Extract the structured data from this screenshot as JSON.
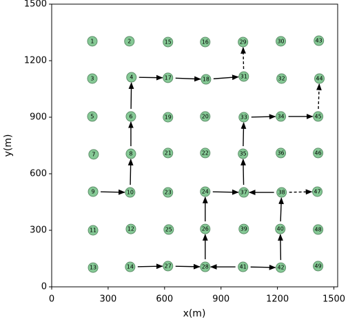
{
  "chart_data": {
    "type": "scatter",
    "xlabel": "x(m)",
    "ylabel": "y(m)",
    "xlim": [
      0,
      1520
    ],
    "ylim": [
      0,
      1500
    ],
    "xticks": [
      0,
      300,
      600,
      900,
      1200,
      1500
    ],
    "yticks": [
      0,
      300,
      600,
      900,
      1200,
      1500
    ],
    "color": "#85c995",
    "edge_color": "#5e8f6a",
    "arrow_color": "#000000",
    "point_labels": [
      "1",
      "2",
      "3",
      "4",
      "5",
      "6",
      "7",
      "8",
      "9",
      "10",
      "11",
      "12",
      "13",
      "14",
      "15",
      "16",
      "17",
      "18",
      "19",
      "20",
      "21",
      "22",
      "23",
      "24",
      "25",
      "26",
      "27",
      "28",
      "29",
      "30",
      "31",
      "32",
      "33",
      "34",
      "35",
      "36",
      "37",
      "38",
      "39",
      "40",
      "41",
      "42",
      "43",
      "44",
      "45",
      "46",
      "47",
      "48",
      "49"
    ],
    "x": [
      216,
      413,
      216,
      424,
      216,
      421,
      223,
      421,
      220,
      417,
      220,
      421,
      220,
      417,
      618,
      816,
      618,
      820,
      618,
      816,
      618,
      816,
      618,
      816,
      622,
      816,
      618,
      816,
      1017,
      1218,
      1021,
      1222,
      1021,
      1218,
      1017,
      1218,
      1021,
      1222,
      1021,
      1215,
      1017,
      1218,
      1420,
      1423,
      1416,
      1416,
      1412,
      1416,
      1416
    ],
    "y": [
      1303,
      1303,
      1105,
      1112,
      904,
      904,
      703,
      706,
      505,
      501,
      300,
      307,
      102,
      106,
      1299,
      1299,
      1109,
      1101,
      900,
      904,
      710,
      710,
      501,
      505,
      304,
      307,
      110,
      106,
      1299,
      1303,
      1116,
      1105,
      900,
      904,
      706,
      710,
      501,
      501,
      307,
      307,
      106,
      102,
      1306,
      1105,
      904,
      710,
      505,
      304,
      110
    ],
    "arrows": [
      {
        "from": 8,
        "to": 9,
        "style": "solid"
      },
      {
        "from": 9,
        "to": 7,
        "style": "solid"
      },
      {
        "from": 7,
        "to": 5,
        "style": "solid"
      },
      {
        "from": 5,
        "to": 3,
        "style": "solid"
      },
      {
        "from": 3,
        "to": 16,
        "style": "solid"
      },
      {
        "from": 16,
        "to": 17,
        "style": "solid"
      },
      {
        "from": 17,
        "to": 30,
        "style": "solid"
      },
      {
        "from": 30,
        "to": 28,
        "style": "dashed"
      },
      {
        "from": 13,
        "to": 26,
        "style": "solid"
      },
      {
        "from": 26,
        "to": 27,
        "style": "solid"
      },
      {
        "from": 27,
        "to": 25,
        "style": "solid"
      },
      {
        "from": 25,
        "to": 23,
        "style": "solid"
      },
      {
        "from": 23,
        "to": 36,
        "style": "solid"
      },
      {
        "from": 36,
        "to": 34,
        "style": "solid"
      },
      {
        "from": 34,
        "to": 32,
        "style": "solid"
      },
      {
        "from": 32,
        "to": 33,
        "style": "solid"
      },
      {
        "from": 33,
        "to": 44,
        "style": "solid"
      },
      {
        "from": 44,
        "to": 43,
        "style": "dashed"
      },
      {
        "from": 40,
        "to": 27,
        "style": "solid"
      },
      {
        "from": 40,
        "to": 41,
        "style": "solid"
      },
      {
        "from": 41,
        "to": 39,
        "style": "solid"
      },
      {
        "from": 39,
        "to": 37,
        "style": "solid"
      },
      {
        "from": 37,
        "to": 36,
        "style": "solid"
      },
      {
        "from": 37,
        "to": 46,
        "style": "dashed"
      }
    ]
  }
}
